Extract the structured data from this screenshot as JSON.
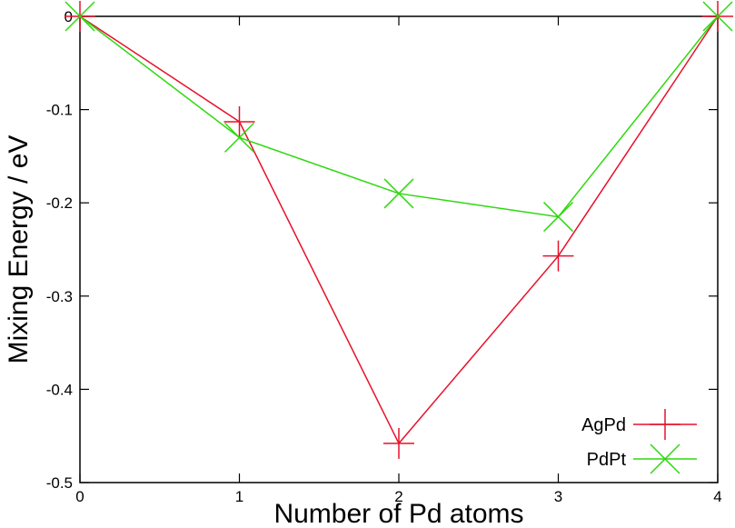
{
  "chart_data": {
    "type": "line",
    "xlabel": "Number of Pd atoms",
    "ylabel": "Mixing Energy / eV",
    "xlim": [
      0,
      4
    ],
    "ylim": [
      -0.5,
      0
    ],
    "x_ticks": [
      0,
      1,
      2,
      3,
      4
    ],
    "x_tick_labels": [
      "0",
      "1",
      "2",
      "3",
      "4"
    ],
    "y_ticks": [
      0,
      -0.1,
      -0.2,
      -0.3,
      -0.4,
      -0.5
    ],
    "y_tick_labels": [
      "0",
      "-0.1",
      "-0.2",
      "-0.3",
      "-0.4",
      "-0.5"
    ],
    "grid": false,
    "legend_position": "bottom-right",
    "series": [
      {
        "name": "AgPd",
        "color": "#e8102a",
        "marker": "plus",
        "x": [
          0,
          1,
          2,
          3,
          4
        ],
        "y": [
          0,
          -0.113,
          -0.458,
          -0.257,
          0
        ]
      },
      {
        "name": "PdPt",
        "color": "#2ed80e",
        "marker": "cross",
        "x": [
          0,
          1,
          2,
          3,
          4
        ],
        "y": [
          0,
          -0.13,
          -0.19,
          -0.215,
          0
        ]
      }
    ]
  }
}
